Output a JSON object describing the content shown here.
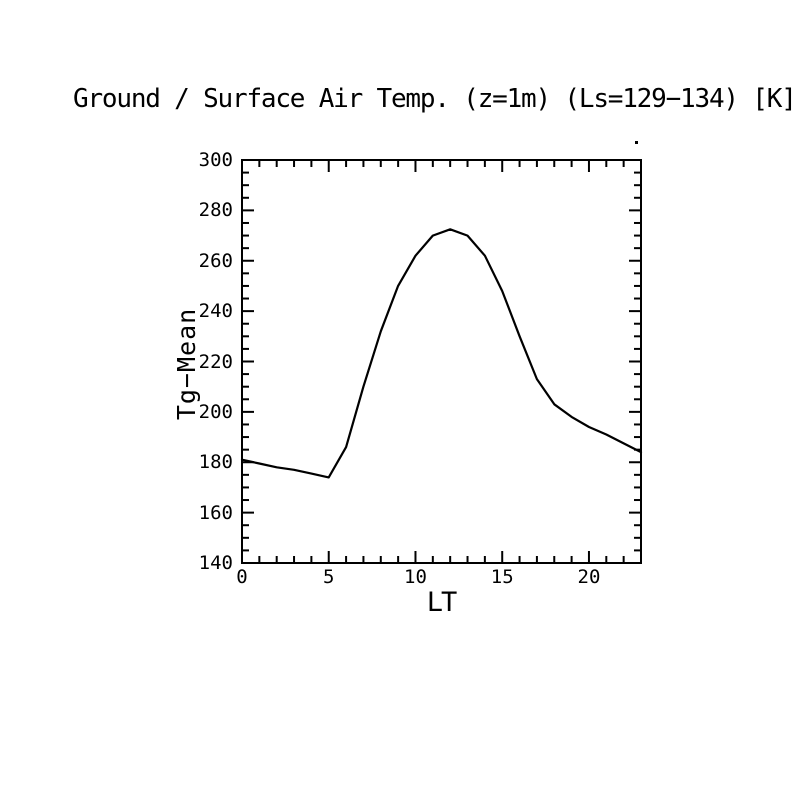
{
  "page": {
    "background": "#ffffff",
    "foreground": "#000000"
  },
  "chart_data": {
    "type": "line",
    "title": "Ground / Surface Air Temp. (z=1m) (Ls=129−134) [K]",
    "xlabel": "LT",
    "ylabel": "Tg−Mean",
    "x": [
      0,
      1,
      2,
      3,
      4,
      5,
      6,
      7,
      8,
      9,
      10,
      11,
      12,
      13,
      14,
      15,
      16,
      17,
      18,
      19,
      20,
      21,
      22,
      23
    ],
    "series": [
      {
        "name": "Tg-Mean",
        "values": [
          181,
          179.5,
          178,
          177,
          175.5,
          174,
          186,
          210,
          232,
          250,
          262,
          270,
          272.5,
          270,
          262,
          248,
          230,
          213,
          203,
          198,
          194,
          191,
          187.5,
          184
        ]
      }
    ],
    "xlim": [
      0,
      23
    ],
    "ylim": [
      140,
      300
    ],
    "x_major_ticks": [
      0,
      5,
      10,
      15,
      20
    ],
    "x_minor_step": 1,
    "y_major_ticks": [
      140,
      160,
      180,
      200,
      220,
      240,
      260,
      280,
      300
    ],
    "y_minor_step": 5,
    "grid": false,
    "line_color": "#000000",
    "axis_color": "#000000",
    "background": "#ffffff"
  }
}
